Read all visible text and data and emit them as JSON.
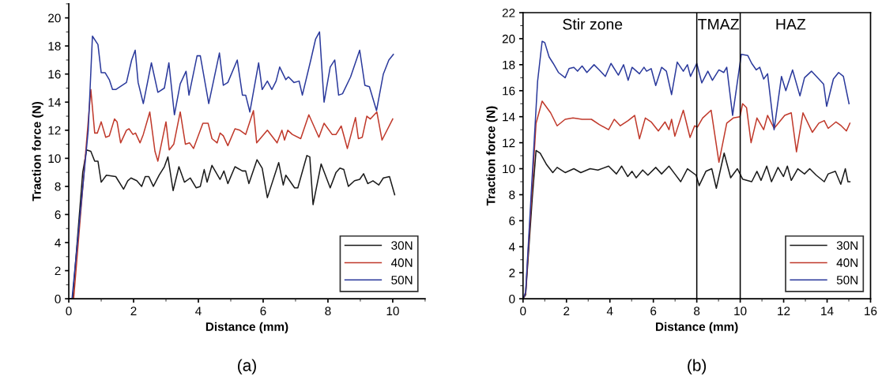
{
  "chart_data": [
    {
      "type": "line",
      "xlabel": "Distance (mm)",
      "ylabel": "Traction force (N)",
      "xlim": [
        0,
        11
      ],
      "xticks": [
        0,
        2,
        4,
        6,
        8,
        10
      ],
      "ylim": [
        0,
        21
      ],
      "yticks": [
        0,
        2,
        4,
        6,
        8,
        10,
        12,
        14,
        16,
        18,
        20
      ],
      "legend": "bottom right",
      "grid": false,
      "annotations": [
        "(a)"
      ],
      "series": [
        {
          "name": "30N",
          "color": "#1a1a1a",
          "x": [
            0,
            0.12,
            0.43,
            0.55,
            0.68,
            0.8,
            0.9,
            1.0,
            1.16,
            1.45,
            1.69,
            1.82,
            1.92,
            2.1,
            2.25,
            2.36,
            2.47,
            2.61,
            2.79,
            2.95,
            3.06,
            3.22,
            3.4,
            3.57,
            3.75,
            3.93,
            4.06,
            4.18,
            4.27,
            4.42,
            4.67,
            4.79,
            4.91,
            5.13,
            5.36,
            5.46,
            5.56,
            5.81,
            5.97,
            6.13,
            6.48,
            6.62,
            6.7,
            6.97,
            7.07,
            7.35,
            7.44,
            7.54,
            7.79,
            8.07,
            8.25,
            8.37,
            8.49,
            8.63,
            8.82,
            8.98,
            9.1,
            9.23,
            9.39,
            9.57,
            9.71,
            9.9,
            10.06
          ],
          "values": [
            0,
            0,
            9.0,
            10.6,
            10.5,
            9.8,
            9.8,
            8.3,
            8.8,
            8.7,
            7.8,
            8.4,
            8.6,
            8.4,
            8.0,
            8.7,
            8.7,
            8.0,
            8.8,
            9.4,
            10.1,
            7.7,
            9.4,
            8.3,
            8.6,
            7.9,
            8.0,
            9.2,
            8.3,
            9.5,
            8.5,
            9.1,
            8.2,
            9.4,
            9.1,
            9.1,
            8.2,
            9.9,
            9.3,
            7.2,
            9.7,
            8.1,
            8.8,
            7.9,
            7.9,
            10.2,
            10.1,
            6.7,
            9.6,
            7.9,
            9.0,
            9.3,
            9.2,
            8.0,
            8.4,
            8.5,
            8.9,
            8.2,
            8.4,
            8.1,
            8.6,
            8.7,
            7.4
          ]
        },
        {
          "name": "40N",
          "color": "#c0392b",
          "x": [
            0,
            0.15,
            0.68,
            0.8,
            0.88,
            1.0,
            1.14,
            1.25,
            1.41,
            1.49,
            1.6,
            1.78,
            1.86,
            1.98,
            2.06,
            2.2,
            2.3,
            2.5,
            2.66,
            2.75,
            3.0,
            3.1,
            3.24,
            3.44,
            3.6,
            3.73,
            3.85,
            4.14,
            4.3,
            4.42,
            4.58,
            4.67,
            4.77,
            4.91,
            5.13,
            5.28,
            5.46,
            5.7,
            5.8,
            6.13,
            6.43,
            6.58,
            6.66,
            6.76,
            6.9,
            7.16,
            7.41,
            7.72,
            7.88,
            8.13,
            8.25,
            8.41,
            8.6,
            8.85,
            8.94,
            9.06,
            9.2,
            9.31,
            9.51,
            9.67,
            10.0
          ],
          "values": [
            0,
            0,
            14.9,
            11.8,
            11.8,
            12.6,
            11.5,
            11.6,
            12.8,
            12.6,
            11.1,
            12.0,
            12.1,
            11.7,
            11.8,
            11.1,
            11.7,
            13.3,
            10.5,
            9.8,
            12.6,
            10.6,
            11.0,
            13.3,
            11.0,
            11.1,
            10.7,
            12.5,
            12.5,
            11.4,
            11.1,
            11.8,
            11.6,
            10.9,
            12.1,
            12.0,
            11.7,
            13.4,
            11.1,
            12.0,
            11.1,
            12.0,
            11.3,
            12.0,
            11.7,
            11.4,
            13.1,
            11.5,
            12.5,
            11.7,
            11.7,
            12.3,
            10.7,
            12.9,
            11.4,
            11.5,
            13.0,
            12.8,
            13.3,
            11.3,
            12.8
          ]
        },
        {
          "name": "50N",
          "color": "#2b3a9c",
          "x": [
            0,
            0.1,
            0.6,
            0.73,
            0.9,
            1.0,
            1.12,
            1.25,
            1.35,
            1.45,
            1.78,
            1.94,
            2.05,
            2.14,
            2.3,
            2.55,
            2.75,
            2.95,
            3.09,
            3.26,
            3.44,
            3.62,
            3.71,
            3.96,
            4.06,
            4.32,
            4.65,
            4.77,
            4.91,
            5.2,
            5.36,
            5.46,
            5.59,
            5.86,
            5.97,
            6.13,
            6.27,
            6.4,
            6.51,
            6.7,
            6.78,
            6.95,
            7.11,
            7.21,
            7.47,
            7.62,
            7.74,
            7.88,
            8.07,
            8.21,
            8.33,
            8.45,
            8.7,
            8.98,
            9.14,
            9.28,
            9.5,
            9.71,
            9.88,
            10.02
          ],
          "values": [
            0,
            0,
            12.0,
            18.7,
            18.1,
            16.1,
            16.1,
            15.6,
            14.9,
            14.9,
            15.4,
            17.0,
            17.7,
            15.4,
            13.9,
            16.8,
            14.7,
            15.0,
            16.8,
            13.1,
            15.3,
            16.2,
            14.5,
            17.3,
            17.3,
            13.9,
            17.5,
            15.2,
            15.4,
            17.0,
            14.5,
            14.5,
            13.3,
            16.8,
            14.9,
            15.5,
            14.9,
            15.5,
            16.5,
            15.6,
            15.8,
            15.4,
            15.5,
            14.5,
            17.0,
            18.5,
            19.0,
            14.0,
            16.5,
            17.0,
            14.5,
            14.6,
            15.8,
            17.7,
            15.2,
            15.1,
            13.4,
            16.0,
            17.0,
            17.4
          ]
        }
      ]
    },
    {
      "type": "line",
      "xlabel": "Distance (mm)",
      "ylabel": "Traction force (N)",
      "xlim": [
        0,
        16
      ],
      "xticks": [
        0,
        2,
        4,
        6,
        8,
        10,
        12,
        14,
        16
      ],
      "ylim": [
        0,
        22
      ],
      "yticks": [
        0,
        2,
        4,
        6,
        8,
        10,
        12,
        14,
        16,
        18,
        20,
        22
      ],
      "legend": "bottom right",
      "grid": false,
      "ref_lines": [
        {
          "axis": "x",
          "value": 8,
          "color": "#000000"
        },
        {
          "axis": "x",
          "value": 10,
          "color": "#000000"
        }
      ],
      "annotations": [
        "Stir zone",
        "TMAZ",
        "HAZ",
        "(b)"
      ],
      "series": [
        {
          "name": "30N",
          "color": "#1a1a1a",
          "x": [
            0,
            0.12,
            0.42,
            0.6,
            0.79,
            1.09,
            1.37,
            1.57,
            1.94,
            2.34,
            2.66,
            3.09,
            3.45,
            3.94,
            4.3,
            4.54,
            4.82,
            5.02,
            5.21,
            5.51,
            5.75,
            6.11,
            6.38,
            6.72,
            6.99,
            7.26,
            7.57,
            7.97,
            8.11,
            8.42,
            8.69,
            8.9,
            9.26,
            9.56,
            9.87,
            10.11,
            10.53,
            10.77,
            10.96,
            11.22,
            11.44,
            11.74,
            11.99,
            12.17,
            12.35,
            12.65,
            12.96,
            13.2,
            13.5,
            13.87,
            14.05,
            14.38,
            14.63,
            14.84,
            14.96,
            15.05
          ],
          "values": [
            0,
            0.3,
            7.6,
            11.4,
            11.2,
            10.3,
            9.7,
            10.1,
            9.7,
            10.0,
            9.7,
            10.0,
            9.9,
            10.2,
            9.6,
            10.2,
            9.4,
            9.8,
            9.3,
            9.9,
            9.5,
            10.1,
            9.6,
            10.2,
            9.6,
            9.0,
            10.0,
            9.5,
            8.7,
            9.8,
            10.0,
            8.5,
            11.2,
            9.3,
            10.0,
            9.2,
            9.0,
            9.8,
            9.1,
            10.2,
            9.0,
            10.1,
            9.4,
            10.2,
            9.1,
            10.0,
            9.6,
            10.0,
            9.5,
            9.0,
            9.6,
            9.8,
            8.8,
            10.0,
            9.0,
            9.0
          ]
        },
        {
          "name": "40N",
          "color": "#c0392b",
          "x": [
            0,
            0.12,
            0.6,
            0.88,
            1.27,
            1.57,
            1.94,
            2.3,
            2.72,
            3.15,
            3.51,
            3.94,
            4.2,
            4.48,
            4.84,
            5.14,
            5.36,
            5.63,
            5.9,
            6.23,
            6.54,
            6.72,
            6.84,
            6.99,
            7.38,
            7.69,
            7.9,
            8.03,
            8.27,
            8.66,
            9.02,
            9.38,
            9.68,
            9.99,
            10.11,
            10.29,
            10.5,
            10.77,
            11.08,
            11.26,
            11.56,
            12.05,
            12.35,
            12.59,
            12.89,
            13.32,
            13.62,
            13.87,
            14.05,
            14.41,
            14.65,
            14.89,
            15.05
          ],
          "values": [
            0,
            0.4,
            13.5,
            15.2,
            14.3,
            13.3,
            13.8,
            13.9,
            13.8,
            13.8,
            13.4,
            13.0,
            13.8,
            13.3,
            13.7,
            14.1,
            12.3,
            13.9,
            13.6,
            12.9,
            13.6,
            13.0,
            13.8,
            12.5,
            14.5,
            12.4,
            13.3,
            13.2,
            13.9,
            14.5,
            10.5,
            13.5,
            13.9,
            14.0,
            15.0,
            14.7,
            12.0,
            13.9,
            13.0,
            14.1,
            13.1,
            14.1,
            14.3,
            11.3,
            14.3,
            12.8,
            13.5,
            13.7,
            13.1,
            13.6,
            13.3,
            12.9,
            13.5
          ]
        },
        {
          "name": "50N",
          "color": "#2b3a9c",
          "x": [
            0,
            0.12,
            0.67,
            0.88,
            1.0,
            1.2,
            1.39,
            1.63,
            1.94,
            2.12,
            2.34,
            2.51,
            2.72,
            2.94,
            3.27,
            3.51,
            3.79,
            4.05,
            4.39,
            4.63,
            4.84,
            5.02,
            5.36,
            5.57,
            5.69,
            5.9,
            6.11,
            6.38,
            6.6,
            6.84,
            7.1,
            7.38,
            7.57,
            7.71,
            8.0,
            8.23,
            8.51,
            8.72,
            9.02,
            9.24,
            9.38,
            9.65,
            10.05,
            10.35,
            10.53,
            10.74,
            10.9,
            11.08,
            11.26,
            11.56,
            11.9,
            12.1,
            12.41,
            12.75,
            12.96,
            13.28,
            13.62,
            13.84,
            13.98,
            14.29,
            14.53,
            14.75,
            15.01
          ],
          "values": [
            0,
            0.5,
            16.7,
            19.8,
            19.7,
            18.6,
            18.1,
            17.4,
            17.0,
            17.7,
            17.8,
            17.5,
            17.9,
            17.4,
            18.0,
            17.6,
            17.1,
            18.1,
            17.2,
            18.0,
            16.8,
            17.8,
            17.3,
            17.8,
            17.5,
            17.7,
            16.4,
            17.8,
            17.5,
            15.7,
            18.2,
            17.5,
            18.0,
            17.1,
            18.1,
            16.6,
            17.5,
            16.8,
            17.6,
            17.4,
            17.8,
            14.1,
            18.8,
            18.7,
            18.1,
            17.6,
            17.8,
            16.9,
            17.3,
            13.0,
            17.1,
            16.0,
            17.6,
            15.6,
            17.0,
            17.5,
            16.9,
            16.5,
            14.8,
            16.9,
            17.4,
            17.1,
            15.0
          ]
        }
      ]
    }
  ]
}
